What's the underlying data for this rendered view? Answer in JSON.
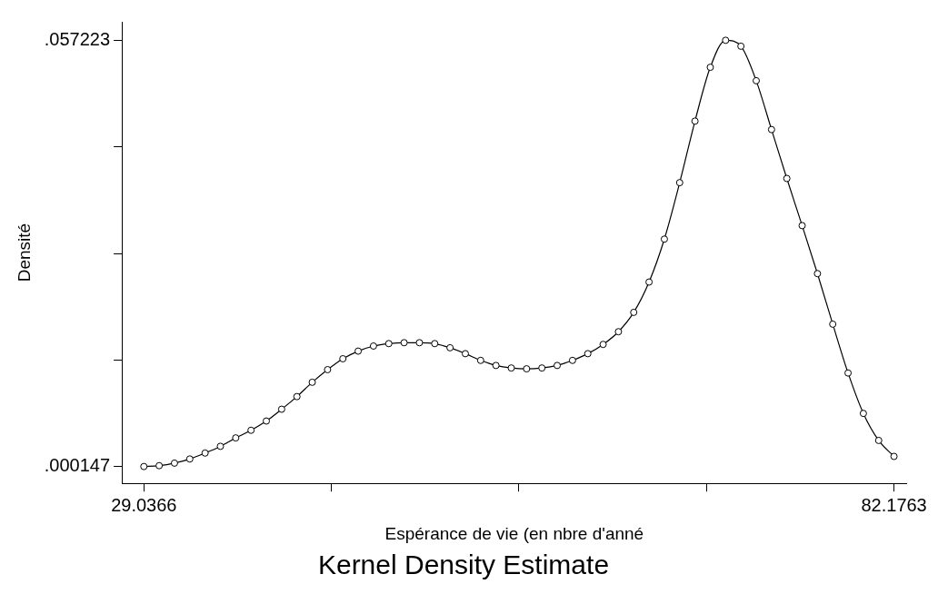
{
  "chart_data": {
    "type": "line",
    "title": "Kernel Density Estimate",
    "xlabel": "Espérance de vie (en nbre d'anné",
    "ylabel": "Densité",
    "x": [
      29.0366,
      30.1211,
      31.2056,
      32.29,
      33.3745,
      34.459,
      35.5435,
      36.628,
      37.7124,
      38.7969,
      39.8814,
      40.9659,
      42.0504,
      43.1348,
      44.2193,
      45.3038,
      46.3883,
      47.4728,
      48.5573,
      49.6417,
      50.7262,
      51.8107,
      52.8952,
      53.9797,
      55.0641,
      56.1486,
      57.2331,
      58.3176,
      59.4021,
      60.4865,
      61.571,
      62.6555,
      63.74,
      64.8245,
      65.909,
      66.9934,
      68.0779,
      69.1624,
      70.2469,
      71.3314,
      72.4158,
      73.5003,
      74.5848,
      75.6693,
      76.7538,
      77.8382,
      78.9227,
      80.0072,
      81.0917,
      82.1763
    ],
    "series": [
      {
        "color": "#000000",
        "values": [
          0.000147,
          0.00026,
          0.0006,
          0.00116,
          0.00195,
          0.00285,
          0.00398,
          0.005,
          0.00624,
          0.00782,
          0.00951,
          0.01143,
          0.01312,
          0.01458,
          0.0156,
          0.01628,
          0.01661,
          0.01673,
          0.01673,
          0.01661,
          0.01605,
          0.01526,
          0.01436,
          0.01368,
          0.01334,
          0.01323,
          0.01334,
          0.01368,
          0.01436,
          0.01526,
          0.0165,
          0.0182,
          0.02079,
          0.02485,
          0.0306,
          0.03816,
          0.0464,
          0.05361,
          0.057223,
          0.05643,
          0.05181,
          0.04527,
          0.03872,
          0.03241,
          0.02598,
          0.01921,
          0.01267,
          0.00726,
          0.00364,
          0.0015
        ]
      }
    ],
    "xlim": [
      27.48,
      83.08
    ],
    "ylim": [
      -0.00211,
      0.0597
    ],
    "xticks": [
      29.0366,
      {
        "value": 42.3215,
        "label": null
      },
      {
        "value": 55.6065,
        "label": null
      },
      {
        "value": 68.8914,
        "label": null
      },
      82.1763
    ],
    "yticks": [
      {
        "value": 0.000147,
        "label": ".000147"
      },
      {
        "value": 0.01442,
        "label": null
      },
      {
        "value": 0.02868,
        "label": null
      },
      {
        "value": 0.04295,
        "label": null
      },
      {
        "value": 0.057223,
        "label": ".057223"
      }
    ],
    "grid": false,
    "legend": false,
    "marker": "circle",
    "line_style": "solid"
  }
}
